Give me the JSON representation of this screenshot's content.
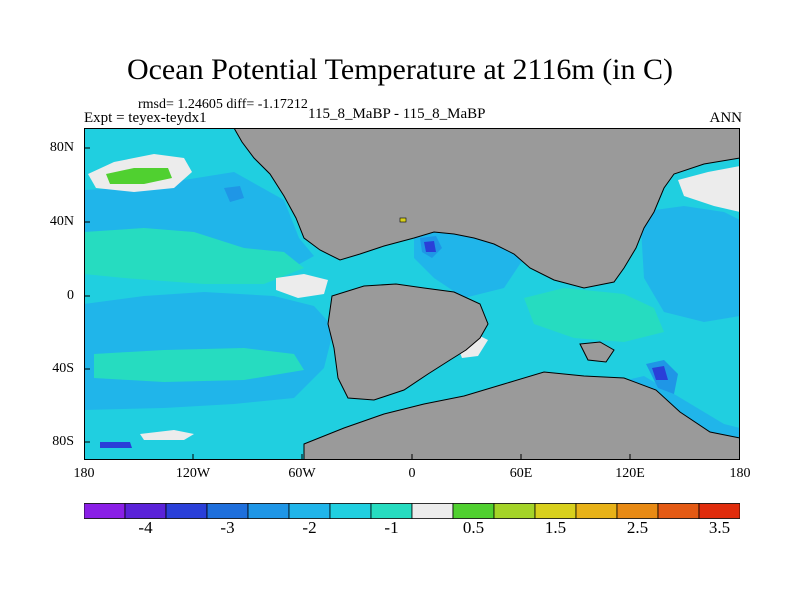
{
  "title": "Ocean Potential Temperature at 2116m (in C)",
  "stats": "rmsd= 1.24605 diff= -1.17212",
  "experiment": "Expt = teyex-teydx1",
  "case_label": "115_8_MaBP - 115_8_MaBP",
  "season": "ANN",
  "lat_labels": [
    "80N",
    "40N",
    "0",
    "40S",
    "80S"
  ],
  "lon_labels": [
    "180",
    "120W",
    "60W",
    "0",
    "60E",
    "120E",
    "180"
  ],
  "colorbar": {
    "colors": [
      "#8a1fe6",
      "#5a22d8",
      "#2a3fd8",
      "#1e6fdc",
      "#1f96e6",
      "#20b5ea",
      "#20cfe0",
      "#26dcc0",
      "#ececec",
      "#50d030",
      "#a4d428",
      "#d8d01c",
      "#e8b218",
      "#e88a14",
      "#e45a14",
      "#e02c0c"
    ],
    "tick_labels": [
      "-4",
      "-3",
      "-2",
      "-1",
      "0.5",
      "1.5",
      "2.5",
      "3.5"
    ]
  },
  "legend_colors": {
    "land": "#9a9a9a",
    "ocean_light": "#20cfe0",
    "ocean_mid": "#20b5ea",
    "ocean_teal": "#26dcc0",
    "ocean_deep": "#1f96e6",
    "ocean_dark": "#2a3fd8",
    "near_zero": "#ececec",
    "warm_green": "#50d030"
  }
}
